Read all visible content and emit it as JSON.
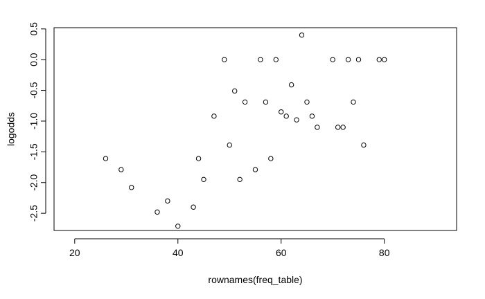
{
  "chart_data": {
    "type": "scatter",
    "title": "",
    "xlabel": "rownames(freq_table)",
    "ylabel": "logodds",
    "xlim": [
      16,
      94
    ],
    "ylim": [
      -2.78,
      0.52
    ],
    "x_ticks": [
      20,
      40,
      60,
      80
    ],
    "y_ticks": [
      -2.5,
      -2.0,
      -1.5,
      -1.0,
      -0.5,
      0.0,
      0.5
    ],
    "x_tick_labels": [
      "20",
      "40",
      "60",
      "80"
    ],
    "y_tick_labels": [
      "-2.5",
      "-2.0",
      "-1.5",
      "-1.0",
      "-0.5",
      "0.0",
      "0.5"
    ],
    "grid": false,
    "marker": "open-circle",
    "points": [
      {
        "x": 26,
        "y": -1.61
      },
      {
        "x": 29,
        "y": -1.79
      },
      {
        "x": 31,
        "y": -2.08
      },
      {
        "x": 36,
        "y": -2.48
      },
      {
        "x": 38,
        "y": -2.3
      },
      {
        "x": 40,
        "y": -2.71
      },
      {
        "x": 43,
        "y": -2.4
      },
      {
        "x": 44,
        "y": -1.61
      },
      {
        "x": 45,
        "y": -1.95
      },
      {
        "x": 47,
        "y": -0.92
      },
      {
        "x": 49,
        "y": 0.0
      },
      {
        "x": 50,
        "y": -1.39
      },
      {
        "x": 51,
        "y": -0.51
      },
      {
        "x": 52,
        "y": -1.95
      },
      {
        "x": 53,
        "y": -0.69
      },
      {
        "x": 55,
        "y": -1.79
      },
      {
        "x": 56,
        "y": 0.0
      },
      {
        "x": 57,
        "y": -0.69
      },
      {
        "x": 58,
        "y": -1.61
      },
      {
        "x": 59,
        "y": 0.0
      },
      {
        "x": 60,
        "y": -0.85
      },
      {
        "x": 61,
        "y": -0.92
      },
      {
        "x": 62,
        "y": -0.41
      },
      {
        "x": 63,
        "y": -0.98
      },
      {
        "x": 64,
        "y": 0.4
      },
      {
        "x": 65,
        "y": -0.69
      },
      {
        "x": 66,
        "y": -0.92
      },
      {
        "x": 67,
        "y": -1.1
      },
      {
        "x": 70,
        "y": 0.0
      },
      {
        "x": 71,
        "y": -1.1
      },
      {
        "x": 72,
        "y": -1.1
      },
      {
        "x": 73,
        "y": 0.0
      },
      {
        "x": 74,
        "y": -0.69
      },
      {
        "x": 75,
        "y": 0.0
      },
      {
        "x": 76,
        "y": -1.39
      },
      {
        "x": 79,
        "y": 0.0
      },
      {
        "x": 80,
        "y": 0.0
      }
    ]
  }
}
